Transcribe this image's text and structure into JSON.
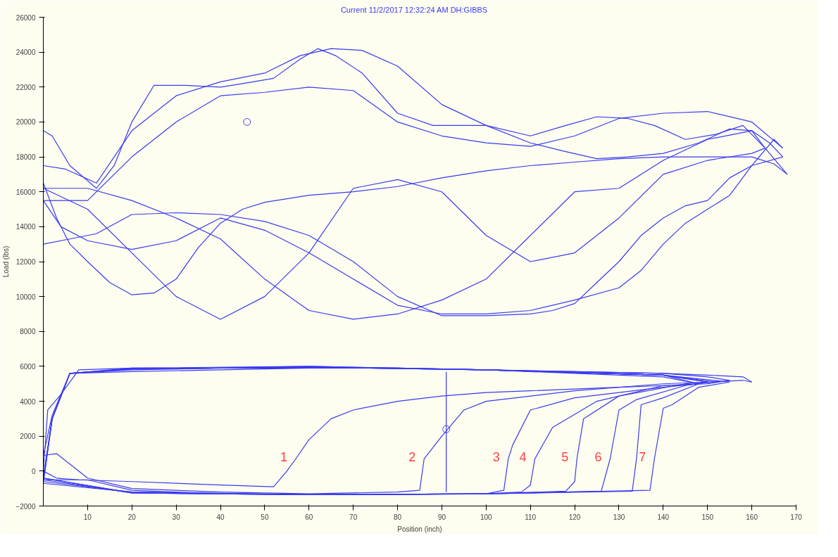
{
  "chart_data": {
    "type": "line",
    "title": "Current     11/2/2017 12:32:24 AM  DH:GIBBS",
    "xlabel": "Position (inch)",
    "ylabel": "Load (lbs)",
    "xlim": [
      0,
      170
    ],
    "ylim": [
      -2000,
      26000
    ],
    "xticks": [
      10,
      20,
      30,
      40,
      50,
      60,
      70,
      80,
      90,
      100,
      110,
      120,
      130,
      140,
      150,
      160,
      170
    ],
    "yticks": [
      -2000,
      0,
      2000,
      4000,
      6000,
      8000,
      10000,
      12000,
      14000,
      16000,
      18000,
      20000,
      22000,
      24000,
      26000
    ],
    "grid": false,
    "line_style": "solid",
    "series": [
      {
        "color": "#3a3af0",
        "x": [
          0,
          2,
          6,
          12,
          16,
          20,
          25,
          32,
          40,
          45,
          52,
          58,
          62,
          66,
          72,
          80,
          88,
          100,
          110,
          118,
          125,
          132,
          138,
          145,
          152,
          158,
          163,
          168
        ],
        "values": [
          19500,
          19200,
          17500,
          16200,
          17500,
          20000,
          22100,
          22100,
          22000,
          22200,
          22500,
          23600,
          24200,
          23800,
          22800,
          20500,
          19800,
          19800,
          19200,
          19800,
          20300,
          20200,
          19800,
          19000,
          19300,
          19800,
          18500,
          17000
        ]
      },
      {
        "color": "#3a3af0",
        "x": [
          0,
          3,
          6,
          10,
          15,
          20,
          25,
          30,
          35,
          40,
          45,
          50,
          60,
          70,
          80,
          90,
          100,
          110,
          120,
          130,
          140,
          150,
          160,
          165,
          168
        ],
        "values": [
          16500,
          14500,
          13000,
          12000,
          10800,
          10100,
          10200,
          11000,
          12800,
          14200,
          15000,
          15400,
          15800,
          16000,
          16300,
          16800,
          17200,
          17500,
          17700,
          17900,
          18000,
          18000,
          18000,
          17600,
          17000
        ]
      },
      {
        "color": "#3a3af0",
        "x": [
          0,
          5,
          12,
          20,
          30,
          40,
          50,
          58,
          65,
          72,
          80,
          90,
          100,
          110,
          118,
          125,
          132,
          140,
          148,
          155,
          160,
          164,
          167
        ],
        "values": [
          17500,
          17300,
          16500,
          19500,
          21500,
          22300,
          22800,
          23800,
          24200,
          24100,
          23200,
          21000,
          19800,
          18800,
          18300,
          17900,
          18000,
          18200,
          18800,
          19600,
          19500,
          18800,
          18000
        ]
      },
      {
        "color": "#3a3af0",
        "x": [
          0,
          6,
          12,
          20,
          30,
          40,
          50,
          60,
          70,
          80,
          90,
          100,
          110,
          115,
          120,
          125,
          130,
          135,
          140,
          145,
          150,
          155,
          160,
          167
        ],
        "values": [
          13000,
          13300,
          13600,
          14700,
          14800,
          14700,
          14300,
          13500,
          12000,
          10000,
          8900,
          8900,
          9000,
          9200,
          9600,
          10800,
          12000,
          13500,
          14500,
          15200,
          15500,
          16800,
          17500,
          18000
        ]
      },
      {
        "color": "#3a3af0",
        "x": [
          0,
          4,
          10,
          20,
          30,
          40,
          50,
          60,
          70,
          80,
          90,
          100,
          110,
          120,
          130,
          135,
          140,
          145,
          150,
          155,
          160,
          165,
          167
        ],
        "values": [
          15500,
          14000,
          13200,
          12700,
          13200,
          14500,
          13800,
          12500,
          11000,
          9500,
          9000,
          9000,
          9200,
          9800,
          10500,
          11500,
          13000,
          14200,
          15000,
          15800,
          17500,
          19000,
          18500
        ]
      },
      {
        "color": "#3a3af0",
        "x": [
          0,
          10,
          20,
          30,
          40,
          50,
          60,
          70,
          80,
          90,
          100,
          110,
          120,
          130,
          140,
          150,
          160,
          167
        ],
        "values": [
          15500,
          15500,
          18000,
          20000,
          21500,
          21700,
          22000,
          21800,
          20000,
          19200,
          18800,
          18600,
          19200,
          20200,
          20500,
          20600,
          20000,
          18500
        ]
      },
      {
        "color": "#3a3af0",
        "x": [
          0,
          10,
          20,
          30,
          40,
          50,
          60,
          70,
          80,
          90,
          100,
          110,
          120,
          130,
          140,
          150,
          160,
          163
        ],
        "values": [
          16200,
          16200,
          15500,
          14500,
          13300,
          11000,
          9200,
          8700,
          9000,
          9800,
          11000,
          13500,
          16000,
          16200,
          17800,
          19000,
          19500,
          18500
        ]
      },
      {
        "color": "#3a3af0",
        "x": [
          0,
          10,
          20,
          30,
          40,
          50,
          60,
          70,
          80,
          90,
          100,
          110,
          120,
          130,
          140,
          150,
          160,
          163
        ],
        "values": [
          16200,
          15000,
          12500,
          10000,
          8700,
          10000,
          12500,
          16200,
          16700,
          16000,
          13500,
          12000,
          12500,
          14500,
          17000,
          17800,
          18200,
          18500
        ]
      },
      {
        "color": "#3a3af0",
        "x": [
          0,
          1,
          4,
          8,
          20,
          40,
          60,
          80,
          100,
          120,
          140,
          150,
          155
        ],
        "values": [
          0,
          3500,
          4400,
          5800,
          5900,
          5900,
          6000,
          5900,
          5800,
          5700,
          5600,
          5400,
          5200
        ]
      },
      {
        "color": "#3a3af0",
        "x": [
          0,
          3,
          8,
          20,
          40,
          52,
          55,
          57,
          60,
          65,
          70,
          80,
          90,
          100,
          110,
          120,
          130,
          140,
          150,
          155
        ],
        "values": [
          0,
          -400,
          -500,
          -600,
          -800,
          -900,
          0,
          700,
          1800,
          3000,
          3500,
          4000,
          4300,
          4500,
          4600,
          4700,
          4800,
          4900,
          5000,
          5200
        ]
      },
      {
        "color": "#3a3af0",
        "x": [
          0,
          3,
          10,
          20,
          40,
          60,
          80,
          85,
          86,
          90,
          95,
          100,
          120,
          140,
          150,
          158,
          160
        ],
        "values": [
          900,
          1000,
          -400,
          -1000,
          -1200,
          -1300,
          -1200,
          -1100,
          700,
          2000,
          3500,
          4000,
          4600,
          5000,
          5100,
          5200,
          5100
        ]
      },
      {
        "color": "#3a3af0",
        "x": [
          0,
          2,
          6,
          20,
          40,
          60,
          80,
          100,
          120,
          140,
          150,
          158,
          160
        ],
        "values": [
          900,
          3200,
          5600,
          5700,
          5800,
          5900,
          5900,
          5800,
          5700,
          5600,
          5500,
          5400,
          5100
        ]
      },
      {
        "color": "#3a3af0",
        "x": [
          0,
          10,
          20,
          40,
          60,
          80,
          100,
          104,
          105,
          106,
          110,
          120,
          140,
          148
        ],
        "values": [
          -500,
          -500,
          -1100,
          -1300,
          -1350,
          -1350,
          -1300,
          -1100,
          700,
          1500,
          3500,
          4200,
          4800,
          5000
        ]
      },
      {
        "color": "#3a3af0",
        "x": [
          0,
          2,
          6,
          20,
          40,
          60,
          80,
          100,
          120,
          140,
          148
        ],
        "values": [
          -500,
          3000,
          5600,
          5800,
          5900,
          5900,
          5900,
          5800,
          5600,
          5400,
          5000
        ]
      },
      {
        "color": "#3a3af0",
        "x": [
          0,
          20,
          60,
          100,
          108,
          110,
          111,
          115,
          125,
          140,
          148
        ],
        "values": [
          -600,
          -1200,
          -1350,
          -1300,
          -1200,
          -800,
          700,
          2500,
          4000,
          4900,
          5000
        ]
      },
      {
        "color": "#3a3af0",
        "x": [
          0,
          2,
          6,
          20,
          60,
          100,
          140,
          148
        ],
        "values": [
          -600,
          3000,
          5600,
          5850,
          5950,
          5800,
          5500,
          5000
        ]
      },
      {
        "color": "#3a3af0",
        "x": [
          0,
          20,
          60,
          100,
          118,
          120,
          120.5,
          122,
          130,
          145,
          150
        ],
        "values": [
          -700,
          -1200,
          -1350,
          -1300,
          -1150,
          -600,
          700,
          3000,
          4300,
          5000,
          5100
        ]
      },
      {
        "color": "#3a3af0",
        "x": [
          0,
          2,
          6,
          20,
          60,
          100,
          140,
          150
        ],
        "values": [
          -700,
          3000,
          5600,
          5850,
          5950,
          5800,
          5500,
          5100
        ]
      },
      {
        "color": "#3a3af0",
        "x": [
          0,
          20,
          60,
          100,
          126,
          128,
          130,
          134,
          145,
          150
        ],
        "values": [
          -500,
          -1250,
          -1350,
          -1300,
          -1150,
          700,
          3500,
          4100,
          4900,
          5100
        ]
      },
      {
        "color": "#3a3af0",
        "x": [
          0,
          2,
          6,
          20,
          60,
          100,
          140,
          150
        ],
        "values": [
          -500,
          3000,
          5600,
          5850,
          5950,
          5800,
          5500,
          5100
        ]
      },
      {
        "color": "#3a3af0",
        "x": [
          0,
          20,
          60,
          100,
          133,
          134,
          135,
          140,
          148,
          152
        ],
        "values": [
          -400,
          -1250,
          -1350,
          -1300,
          -1150,
          800,
          3800,
          4200,
          5000,
          5100
        ]
      },
      {
        "color": "#3a3af0",
        "x": [
          0,
          2,
          6,
          20,
          60,
          100,
          140,
          152
        ],
        "values": [
          -400,
          3000,
          5600,
          5850,
          5950,
          5800,
          5500,
          5100
        ]
      },
      {
        "color": "#3a3af0",
        "x": [
          0,
          20,
          60,
          100,
          137,
          138,
          140,
          142,
          148,
          155
        ],
        "values": [
          -400,
          -1250,
          -1350,
          -1300,
          -1100,
          700,
          3600,
          3800,
          4800,
          5100
        ]
      },
      {
        "color": "#3a3af0",
        "x": [
          0,
          2,
          6,
          20,
          60,
          100,
          140,
          155
        ],
        "values": [
          -400,
          3000,
          5600,
          5900,
          6000,
          5800,
          5500,
          5100
        ]
      },
      {
        "color": "#3a3af0",
        "x": [
          91,
          91
        ],
        "values": [
          -1200,
          5700
        ]
      },
      {
        "color": "#3a3af0",
        "type": "scatter",
        "marker": "circle",
        "x": [
          46,
          91
        ],
        "values": [
          20000,
          2400
        ]
      }
    ],
    "annotations": [
      {
        "text": "1",
        "x": 57,
        "y": 700
      },
      {
        "text": "2",
        "x": 86,
        "y": 700
      },
      {
        "text": "3",
        "x": 105,
        "y": 700
      },
      {
        "text": "4",
        "x": 111,
        "y": 700
      },
      {
        "text": "5",
        "x": 120.5,
        "y": 700
      },
      {
        "text": "6",
        "x": 128,
        "y": 700
      },
      {
        "text": "7",
        "x": 138,
        "y": 700
      }
    ]
  }
}
